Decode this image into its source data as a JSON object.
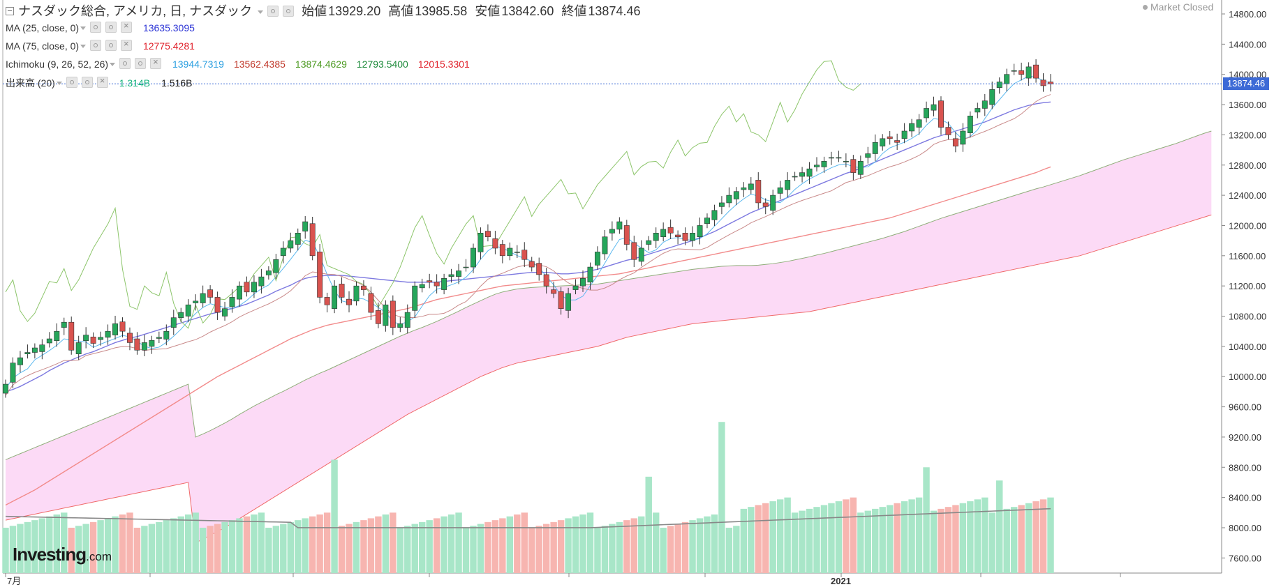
{
  "header": {
    "symbol_line": "ナスダック総合, アメリカ, 日, ナスダック",
    "open_label": "始値",
    "open": "13929.20",
    "high_label": "高値",
    "high": "13985.58",
    "low_label": "安値",
    "low": "13842.60",
    "close_label": "終値",
    "close": "13874.46",
    "market_status": "Market Closed"
  },
  "indicators": {
    "ma25": {
      "label": "MA (25, close, 0)",
      "value": "13635.3095",
      "color": "#2d35d6"
    },
    "ma75": {
      "label": "MA (75, close, 0)",
      "value": "12775.4281",
      "color": "#e0202a"
    },
    "ichimoku": {
      "label": "Ichimoku (9, 26, 52, 26)",
      "values": [
        "13944.7319",
        "13562.4385",
        "13874.4629",
        "12793.5400",
        "12015.3301"
      ],
      "colors": [
        "#2b9fe0",
        "#c0392b",
        "#4c9a21",
        "#1c8a3a",
        "#e0202a"
      ]
    },
    "volume": {
      "label": "出来高 (20)",
      "values": [
        "1.314B",
        "1.516B"
      ],
      "colors": [
        "#14b37d",
        "#222222"
      ]
    }
  },
  "logo": {
    "main": "Investing",
    "suffix": ".com"
  },
  "price_tag": "13874.46",
  "colors": {
    "up": "#26a65b",
    "down": "#d9534f",
    "up_vol": "#a8e6c8",
    "down_vol": "#f7b5b0",
    "cloud": "#fcdaf6",
    "last_line": "#3d6ad6"
  },
  "chart_data": {
    "type": "candlestick",
    "title": "ナスダック総合, アメリカ, 日, ナスダック",
    "y_axis_ticks": [
      7600,
      8000,
      8400,
      8800,
      9200,
      9600,
      10000,
      10400,
      10800,
      11200,
      11600,
      12000,
      12400,
      12800,
      13200,
      13600,
      14000,
      14400,
      14800
    ],
    "ylim": [
      7400,
      14800
    ],
    "x_labels": [
      "7月",
      "2021"
    ],
    "volume_scale": "ratio to axis ticks (values shown on price axis)",
    "series": [
      {
        "name": "price_close",
        "values": [
          9900,
          10180,
          10250,
          10320,
          10380,
          10420,
          10500,
          10600,
          10720,
          10350,
          10450,
          10550,
          10440,
          10520,
          10600,
          10700,
          10600,
          10450,
          10350,
          10450,
          10480,
          10520,
          10600,
          10780,
          10850,
          10950,
          11000,
          11100,
          11050,
          10850,
          10900,
          11050,
          11200,
          11120,
          11250,
          11320,
          11400,
          11550,
          11700,
          11800,
          11900,
          12050,
          11600,
          11050,
          10950,
          11200,
          11050,
          10950,
          11200,
          11150,
          10850,
          10700,
          10950,
          10650,
          10700,
          10850,
          11200,
          11220,
          11250,
          11200,
          11300,
          11350,
          11400,
          11450,
          11700,
          11900,
          11850,
          11700,
          11600,
          11700,
          11650,
          11550,
          11450,
          11350,
          11200,
          11100,
          10900,
          11100,
          11200,
          11300,
          11450,
          11650,
          11850,
          11950,
          12050,
          11750,
          11550,
          11700,
          11800,
          11900,
          11950,
          11900,
          11850,
          11800,
          11900,
          12000,
          12100,
          12200,
          12300,
          12400,
          12450,
          12500,
          12550,
          12300,
          12250,
          12400,
          12500,
          12600,
          12650,
          12700,
          12750,
          12800,
          12850,
          12900,
          12900,
          12850,
          12700,
          12850,
          12950,
          13100,
          13150,
          13150,
          13100,
          13250,
          13350,
          13400,
          13550,
          13600,
          13300,
          13200,
          13050,
          13250,
          13450,
          13550,
          13650,
          13800,
          13900,
          14000,
          14050,
          14000,
          14100,
          13950,
          13850,
          13874
        ]
      },
      {
        "name": "ma25",
        "values": [
          9800,
          9830,
          9870,
          9920,
          9970,
          10020,
          10080,
          10130,
          10180,
          10220,
          10260,
          10300,
          10330,
          10370,
          10410,
          10450,
          10480,
          10510,
          10530,
          10560,
          10590,
          10620,
          10650,
          10680,
          10710,
          10740,
          10770,
          10800,
          10830,
          10850,
          10880,
          10900,
          10930,
          10960,
          11000,
          11040,
          11080,
          11130,
          11170,
          11210,
          11260,
          11300,
          11320,
          11330,
          11340,
          11340,
          11340,
          11330,
          11320,
          11310,
          11300,
          11290,
          11280,
          11270,
          11260,
          11250,
          11250,
          11250,
          11250,
          11250,
          11260,
          11270,
          11280,
          11290,
          11300,
          11310,
          11320,
          11330,
          11340,
          11350,
          11360,
          11370,
          11380,
          11380,
          11380,
          11370,
          11360,
          11360,
          11370,
          11380,
          11400,
          11420,
          11450,
          11480,
          11510,
          11540,
          11560,
          11590,
          11620,
          11650,
          11680,
          11710,
          11740,
          11770,
          11800,
          11840,
          11880,
          11920,
          11970,
          12020,
          12070,
          12120,
          12170,
          12210,
          12250,
          12290,
          12330,
          12370,
          12410,
          12450,
          12490,
          12530,
          12570,
          12610,
          12650,
          12690,
          12720,
          12760,
          12800,
          12840,
          12880,
          12920,
          12960,
          13000,
          13040,
          13080,
          13120,
          13160,
          13190,
          13220,
          13250,
          13280,
          13310,
          13340,
          13370,
          13410,
          13450,
          13490,
          13530,
          13560,
          13590,
          13610,
          13625,
          13635
        ]
      },
      {
        "name": "ma75",
        "values": [
          8300,
          8350,
          8400,
          8450,
          8500,
          8560,
          8620,
          8680,
          8740,
          8800,
          8860,
          8920,
          8980,
          9040,
          9100,
          9160,
          9220,
          9280,
          9340,
          9400,
          9460,
          9520,
          9580,
          9640,
          9700,
          9760,
          9820,
          9880,
          9940,
          10000,
          10050,
          10100,
          10150,
          10200,
          10250,
          10300,
          10350,
          10400,
          10450,
          10500,
          10540,
          10580,
          10620,
          10650,
          10680,
          10700,
          10720,
          10740,
          10760,
          10780,
          10800,
          10820,
          10840,
          10860,
          10880,
          10900,
          10930,
          10960,
          10990,
          11020,
          11040,
          11060,
          11080,
          11100,
          11120,
          11140,
          11160,
          11180,
          11200,
          11210,
          11220,
          11230,
          11240,
          11250,
          11260,
          11270,
          11280,
          11290,
          11300,
          11310,
          11320,
          11330,
          11340,
          11350,
          11360,
          11380,
          11400,
          11420,
          11440,
          11460,
          11480,
          11500,
          11520,
          11540,
          11560,
          11580,
          11600,
          11620,
          11640,
          11660,
          11680,
          11700,
          11720,
          11740,
          11760,
          11780,
          11800,
          11820,
          11840,
          11860,
          11880,
          11900,
          11920,
          11940,
          11960,
          11980,
          12000,
          12020,
          12040,
          12060,
          12080,
          12100,
          12130,
          12160,
          12190,
          12220,
          12250,
          12280,
          12310,
          12340,
          12370,
          12400,
          12430,
          12460,
          12490,
          12520,
          12550,
          12580,
          12610,
          12640,
          12670,
          12700,
          12740,
          12775
        ]
      }
    ]
  }
}
